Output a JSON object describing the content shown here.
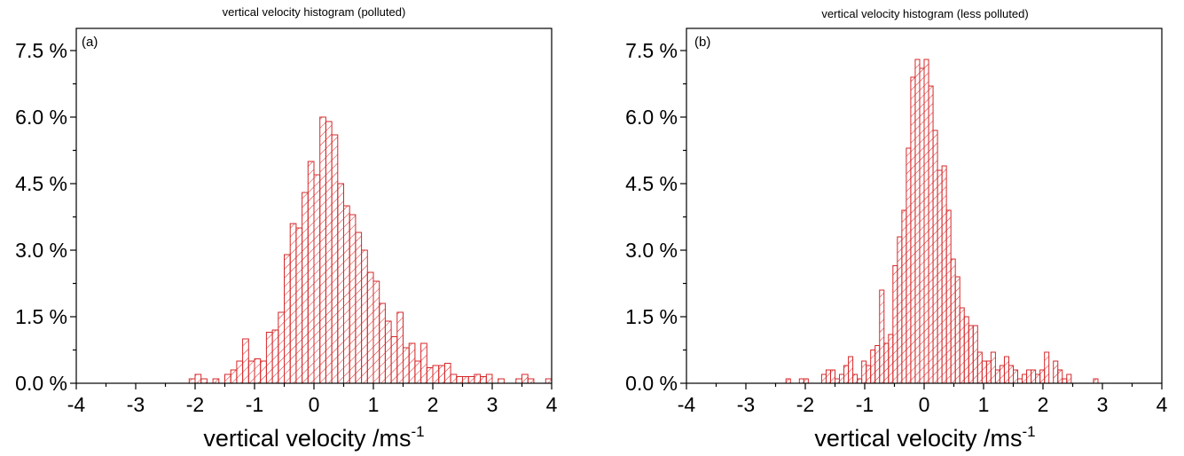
{
  "chart_data": [
    {
      "type": "bar",
      "panel_label": "(a)",
      "title": "vertical velocity histogram (polluted)",
      "xlabel": "vertical velocity /ms",
      "xlabel_superscript": "-1",
      "ylabel": "",
      "xlim": [
        -4,
        4
      ],
      "ylim": [
        0,
        8.0
      ],
      "xticks": [
        -4,
        -3,
        -2,
        -1,
        0,
        1,
        2,
        3,
        4
      ],
      "xtick_labels": [
        "-4",
        "-3",
        "-2",
        "-1",
        "0",
        "1",
        "2",
        "3",
        "4"
      ],
      "yticks": [
        0,
        1.5,
        3.0,
        4.5,
        6.0,
        7.5
      ],
      "ytick_labels": [
        "0.0 %",
        "1.5 %",
        "3.0 %",
        "4.5 %",
        "6.0 %",
        "7.5 %"
      ],
      "grid": false,
      "bar_color": "#d62728",
      "bar_pattern": "diagonal-hatch",
      "bin_width": 0.1,
      "bins_start": [
        -2.1,
        -2.0,
        -1.9,
        -1.8,
        -1.7,
        -1.6,
        -1.5,
        -1.4,
        -1.3,
        -1.2,
        -1.1,
        -1.0,
        -0.9,
        -0.8,
        -0.7,
        -0.6,
        -0.5,
        -0.4,
        -0.3,
        -0.2,
        -0.1,
        0.0,
        0.1,
        0.2,
        0.3,
        0.4,
        0.5,
        0.6,
        0.7,
        0.8,
        0.9,
        1.0,
        1.1,
        1.2,
        1.3,
        1.4,
        1.5,
        1.6,
        1.7,
        1.8,
        1.9,
        2.0,
        2.1,
        2.2,
        2.3,
        2.4,
        2.5,
        2.6,
        2.7,
        2.8,
        2.9,
        3.0,
        3.1,
        3.2,
        3.3,
        3.4,
        3.5,
        3.6,
        3.7,
        3.8,
        3.9
      ],
      "values": [
        0.1,
        0.2,
        0.1,
        0.0,
        0.1,
        0.0,
        0.2,
        0.3,
        0.5,
        1.0,
        0.5,
        0.55,
        0.5,
        1.15,
        1.2,
        1.6,
        2.9,
        3.6,
        3.5,
        4.3,
        5.0,
        4.7,
        6.0,
        5.9,
        5.6,
        4.5,
        4.0,
        3.8,
        3.4,
        3.0,
        2.5,
        2.3,
        1.8,
        1.4,
        1.05,
        1.6,
        0.8,
        0.9,
        0.5,
        0.9,
        0.35,
        0.4,
        0.4,
        0.45,
        0.2,
        0.15,
        0.15,
        0.15,
        0.2,
        0.15,
        0.2,
        0.0,
        0.1,
        0.0,
        0.0,
        0.1,
        0.2,
        0.1,
        0.0,
        0.0,
        0.1
      ]
    },
    {
      "type": "bar",
      "panel_label": "(b)",
      "title": "vertical velocity histogram (less polluted)",
      "xlabel": "vertical velocity /ms",
      "xlabel_superscript": "-1",
      "ylabel": "",
      "xlim": [
        -4,
        4
      ],
      "ylim": [
        0,
        8.0
      ],
      "xticks": [
        -4,
        -3,
        -2,
        -1,
        0,
        1,
        2,
        3,
        4
      ],
      "xtick_labels": [
        "-4",
        "-3",
        "-2",
        "-1",
        "0",
        "1",
        "2",
        "3",
        "4"
      ],
      "yticks": [
        0,
        1.5,
        3.0,
        4.5,
        6.0,
        7.5
      ],
      "ytick_labels": [
        "0.0 %",
        "1.5 %",
        "3.0 %",
        "4.5 %",
        "6.0 %",
        "7.5 %"
      ],
      "grid": false,
      "bar_color": "#d62728",
      "bar_pattern": "diagonal-hatch",
      "bin_width": 0.075,
      "bins_start": [
        -2.325,
        -2.25,
        -2.175,
        -2.1,
        -2.025,
        -1.95,
        -1.875,
        -1.8,
        -1.725,
        -1.65,
        -1.575,
        -1.5,
        -1.425,
        -1.35,
        -1.275,
        -1.2,
        -1.125,
        -1.05,
        -0.975,
        -0.9,
        -0.825,
        -0.75,
        -0.675,
        -0.6,
        -0.525,
        -0.45,
        -0.375,
        -0.3,
        -0.225,
        -0.15,
        -0.075,
        0.0,
        0.075,
        0.15,
        0.225,
        0.3,
        0.375,
        0.45,
        0.525,
        0.6,
        0.675,
        0.75,
        0.825,
        0.9,
        0.975,
        1.05,
        1.125,
        1.2,
        1.275,
        1.35,
        1.425,
        1.5,
        1.575,
        1.65,
        1.725,
        1.8,
        1.875,
        1.95,
        2.025,
        2.1,
        2.175,
        2.25,
        2.325,
        2.4,
        2.475,
        2.55,
        2.625,
        2.7,
        2.775,
        2.85
      ],
      "values": [
        0.1,
        0.0,
        0.0,
        0.1,
        0.1,
        0.0,
        0.0,
        0.0,
        0.2,
        0.3,
        0.3,
        0.1,
        0.2,
        0.4,
        0.6,
        0.2,
        0.1,
        0.5,
        0.4,
        0.75,
        0.85,
        2.1,
        0.9,
        1.1,
        2.65,
        3.3,
        3.9,
        5.3,
        6.9,
        7.3,
        7.1,
        7.3,
        6.7,
        5.7,
        4.8,
        4.9,
        3.9,
        2.8,
        2.4,
        1.7,
        1.5,
        1.3,
        1.3,
        0.7,
        0.5,
        0.5,
        0.7,
        0.3,
        0.4,
        0.6,
        0.4,
        0.3,
        0.1,
        0.2,
        0.3,
        0.3,
        0.2,
        0.3,
        0.7,
        0.0,
        0.5,
        0.3,
        0.1,
        0.2,
        0.0,
        0.0,
        0.0,
        0.0,
        0.0,
        0.1
      ]
    }
  ]
}
